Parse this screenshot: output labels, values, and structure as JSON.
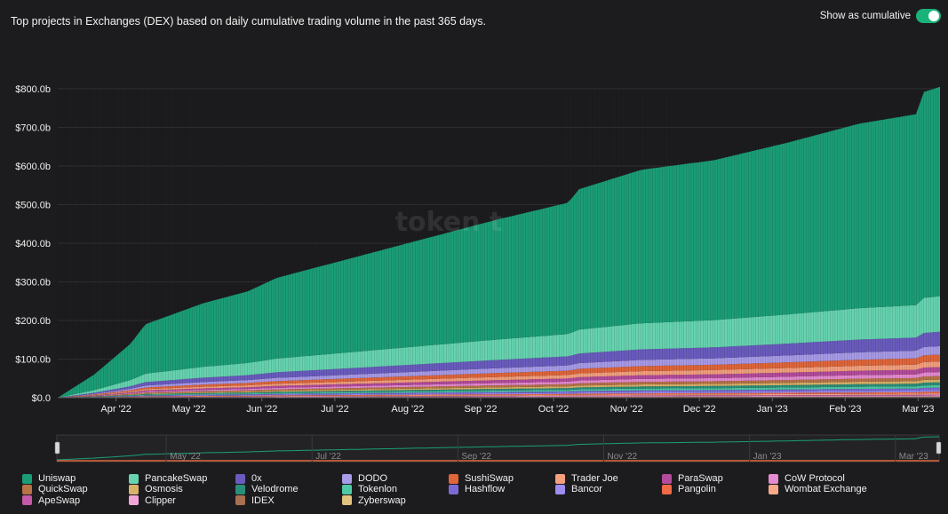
{
  "header": {
    "title": "Top projects in Exchanges (DEX) based on daily cumulative trading volume in the past 365 days.",
    "toggle_label": "Show as cumulative",
    "toggle_on": true
  },
  "watermark": "token t",
  "colors": {
    "background": "#1c1c1e",
    "toggle_on": "#19b37a",
    "grid": "#2f2f33"
  },
  "chart_data": {
    "type": "area",
    "stacked": true,
    "cumulative": true,
    "x_unit": "month",
    "x_start": "Mar '22",
    "x_ticks": [
      "Apr '22",
      "May '22",
      "Jun '22",
      "Jul '22",
      "Aug '22",
      "Sep '22",
      "Oct '22",
      "Nov '22",
      "Dec '22",
      "Jan '23",
      "Feb '23",
      "Mar '23"
    ],
    "y_ticks": [
      "$0.0",
      "$100.0b",
      "$200.0b",
      "$300.0b",
      "$400.0b",
      "$500.0b",
      "$600.0b",
      "$700.0b",
      "$800.0b"
    ],
    "ylim": [
      0,
      800
    ],
    "y_unit": "billion USD",
    "total_cumulative_points": [
      [
        0,
        0
      ],
      [
        0.5,
        60
      ],
      [
        1,
        140
      ],
      [
        1.2,
        190
      ],
      [
        2,
        245
      ],
      [
        2.6,
        275
      ],
      [
        3,
        310
      ],
      [
        4,
        360
      ],
      [
        5,
        410
      ],
      [
        6,
        460
      ],
      [
        7,
        505
      ],
      [
        7.15,
        540
      ],
      [
        8,
        590
      ],
      [
        9,
        615
      ],
      [
        10,
        660
      ],
      [
        11,
        710
      ],
      [
        11.8,
        735
      ],
      [
        11.85,
        790
      ],
      [
        12.1,
        805
      ]
    ],
    "series": [
      {
        "name": "Uniswap",
        "color": "#1b9e77",
        "share": 0.67
      },
      {
        "name": "PancakeSwap",
        "color": "#66d4b0",
        "share": 0.114
      },
      {
        "name": "0x",
        "color": "#6a5cbf",
        "share": 0.046
      },
      {
        "name": "DODO",
        "color": "#a89be8",
        "share": 0.027
      },
      {
        "name": "SushiSwap",
        "color": "#e0663a",
        "share": 0.022
      },
      {
        "name": "Trader Joe",
        "color": "#f3a07e",
        "share": 0.018
      },
      {
        "name": "ParaSwap",
        "color": "#b44b9c",
        "share": 0.016
      },
      {
        "name": "CoW Protocol",
        "color": "#e58bd1",
        "share": 0.013
      },
      {
        "name": "QuickSwap",
        "color": "#b87347",
        "share": 0.011
      },
      {
        "name": "Osmosis",
        "color": "#d9b26a",
        "share": 0.009
      },
      {
        "name": "Velodrome",
        "color": "#2a8f7a",
        "share": 0.009
      },
      {
        "name": "Tokenlon",
        "color": "#4fc9a5",
        "share": 0.008
      },
      {
        "name": "Hashflow",
        "color": "#7b6ad6",
        "share": 0.007
      },
      {
        "name": "Bancor",
        "color": "#9d8df0",
        "share": 0.006
      },
      {
        "name": "Pangolin",
        "color": "#ef6a45",
        "share": 0.005
      },
      {
        "name": "Wombat Exchange",
        "color": "#f7a98a",
        "share": 0.004
      },
      {
        "name": "ApeSwap",
        "color": "#c459a8",
        "share": 0.003
      },
      {
        "name": "Clipper",
        "color": "#f0a6d8",
        "share": 0.003
      },
      {
        "name": "IDEX",
        "color": "#a87050",
        "share": 0.002
      },
      {
        "name": "Zyberswap",
        "color": "#e2c27f",
        "share": 0.002
      }
    ],
    "navigator_ticks": [
      "May '22",
      "Jul '22",
      "Sep '22",
      "Nov '22",
      "Jan '23",
      "Mar '23"
    ],
    "legend_placement": "bottom",
    "grid": true
  }
}
